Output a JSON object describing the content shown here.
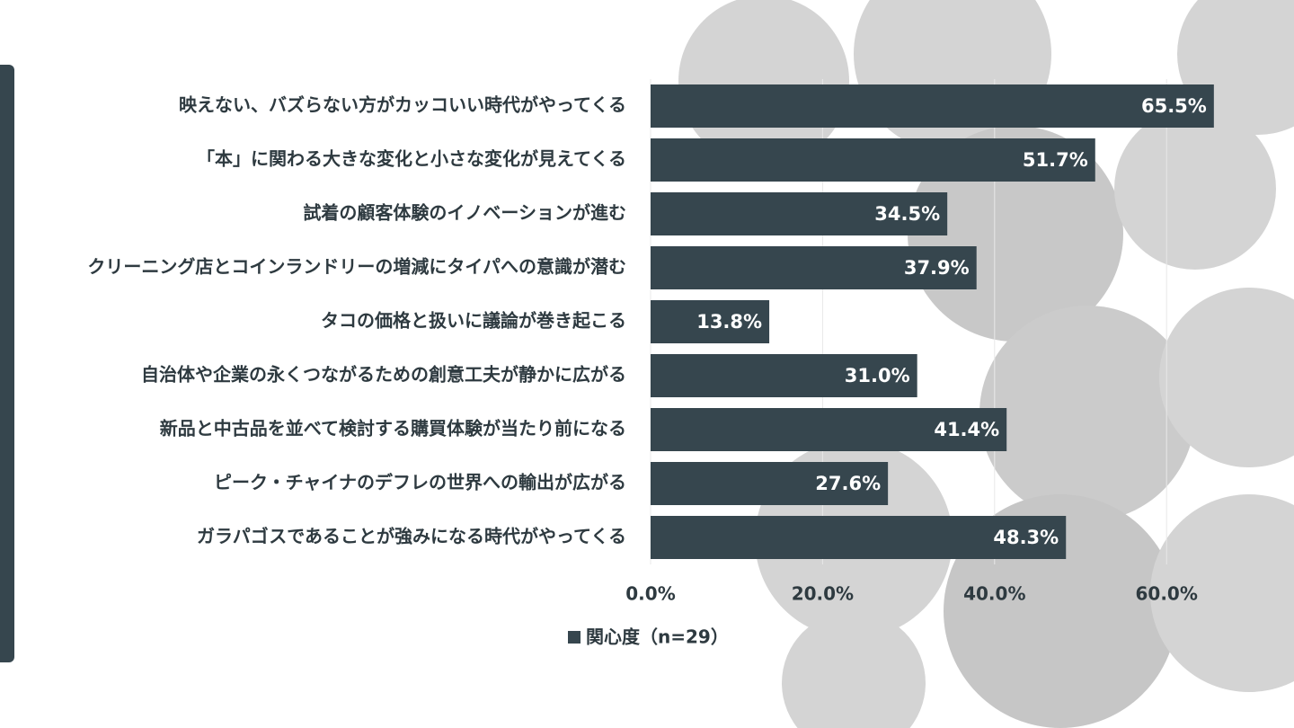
{
  "chart_data": {
    "type": "bar",
    "orientation": "horizontal",
    "categories": [
      "映えない、バズらない方がカッコいい時代がやってくる",
      "「本」に関わる大きな変化と小さな変化が見えてくる",
      "試着の顧客体験のイノベーションが進む",
      "クリーニング店とコインランドリーの増減にタイパへの意識が潜む",
      "タコの価格と扱いに議論が巻き起こる",
      "自治体や企業の永くつながるための創意工夫が静かに広がる",
      "新品と中古品を並べて検討する購買体験が当たり前になる",
      "ピーク・チャイナのデフレの世界への輸出が広がる",
      "ガラパゴスであることが強みになる時代がやってくる"
    ],
    "series": [
      {
        "name": "関心度（n=29）",
        "color": "#36464e",
        "values": [
          65.5,
          51.7,
          34.5,
          37.9,
          13.8,
          31.0,
          41.4,
          27.6,
          48.3
        ],
        "value_labels": [
          "65.5%",
          "51.7%",
          "34.5%",
          "37.9%",
          "13.8%",
          "31.0%",
          "41.4%",
          "27.6%",
          "48.3%"
        ]
      }
    ],
    "xlim": [
      0,
      70
    ],
    "xticks": [
      {
        "value": 0,
        "label": "0.0%"
      },
      {
        "value": 20,
        "label": "20.0%"
      },
      {
        "value": 40,
        "label": "40.0%"
      },
      {
        "value": 60,
        "label": "60.0%"
      }
    ],
    "grid": true,
    "legend": "bottom"
  }
}
